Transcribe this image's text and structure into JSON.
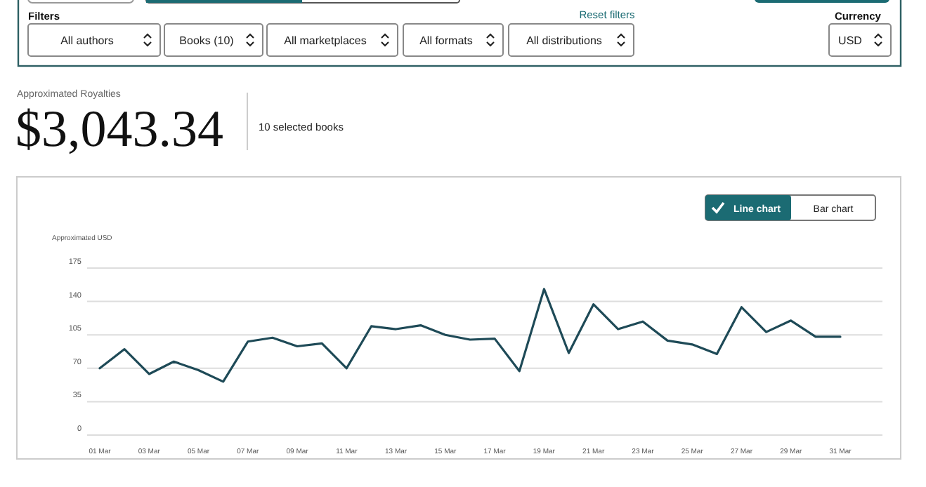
{
  "chart_data": {
    "type": "line",
    "title": "Approximated Royalties",
    "subtitle": "$3,043.34",
    "ylabel": "Approximated USD",
    "annotations": [
      "10 selected books",
      "Filters",
      "Reset filters",
      "Currency",
      "All authors",
      "Books (10)",
      "All marketplaces",
      "All formats",
      "All distributions",
      "USD",
      "Line chart",
      "Bar chart"
    ],
    "categories": [
      "01 Mar",
      null,
      "03 Mar",
      null,
      "05 Mar",
      null,
      "07 Mar",
      null,
      "09 Mar",
      null,
      "11 Mar",
      null,
      "13 Mar",
      null,
      "15 Mar",
      null,
      "17 Mar",
      null,
      "19 Mar",
      null,
      "21 Mar",
      null,
      "23 Mar",
      null,
      "25 Mar",
      null,
      "27 Mar",
      null,
      "29 Mar",
      null,
      "31 Mar"
    ],
    "series": [
      {
        "color": "#1e4a57",
        "values": [
          70,
          90,
          64,
          77,
          68,
          56,
          98,
          102,
          93,
          96,
          70,
          114,
          111,
          115,
          105,
          100,
          101,
          67,
          153,
          86,
          137,
          111,
          119,
          99,
          95,
          85,
          134,
          108,
          120,
          103,
          103
        ]
      }
    ],
    "ylim": [
      0,
      175
    ],
    "yticks": [
      0,
      35,
      70,
      105,
      140,
      175
    ],
    "grid": "y",
    "marker": "none",
    "line_style": "solid"
  }
}
